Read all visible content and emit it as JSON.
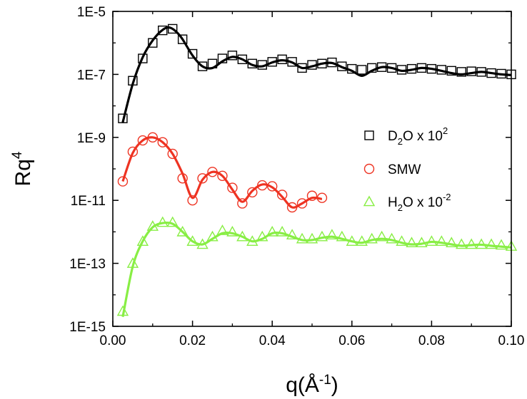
{
  "chart_data": {
    "type": "scatter",
    "xlabel": "q(Å",
    "xlabel_sup": "-1",
    "xlabel_tail": ")",
    "ylabel": "Rq",
    "ylabel_sup": "4",
    "xlim": [
      0,
      0.1
    ],
    "ylim": [
      1e-15,
      1e-05
    ],
    "yscale": "log",
    "grid": false,
    "legend_position": "right",
    "x_ticks": [
      {
        "value": 0.0,
        "label": "0.00"
      },
      {
        "value": 0.02,
        "label": "0.02"
      },
      {
        "value": 0.04,
        "label": "0.04"
      },
      {
        "value": 0.06,
        "label": "0.06"
      },
      {
        "value": 0.08,
        "label": "0.08"
      },
      {
        "value": 0.1,
        "label": "0.10"
      }
    ],
    "y_ticks": [
      {
        "value": 1e-15,
        "label": "1E-15"
      },
      {
        "value": 1e-13,
        "label": "1E-13"
      },
      {
        "value": 1e-11,
        "label": "1E-11"
      },
      {
        "value": 1e-09,
        "label": "1E-9"
      },
      {
        "value": 1e-07,
        "label": "1E-7"
      },
      {
        "value": 1e-05,
        "label": "1E-5"
      }
    ],
    "series": [
      {
        "name": "D2O x 10^2",
        "legend_parts": [
          "D",
          "2",
          "O x 10",
          "2"
        ],
        "marker": "square",
        "color": "#000000",
        "x": [
          0.0025,
          0.005,
          0.0075,
          0.01,
          0.0125,
          0.015,
          0.0175,
          0.02,
          0.0225,
          0.025,
          0.0275,
          0.03,
          0.0325,
          0.035,
          0.0375,
          0.04,
          0.0425,
          0.045,
          0.0475,
          0.05,
          0.0525,
          0.055,
          0.0575,
          0.06,
          0.0625,
          0.065,
          0.0675,
          0.07,
          0.0725,
          0.075,
          0.0775,
          0.08,
          0.0825,
          0.085,
          0.0875,
          0.09,
          0.0925,
          0.095,
          0.0975,
          0.1
        ],
        "y": [
          4e-09,
          6.3e-08,
          3.2e-07,
          1e-06,
          2.5e-06,
          2.8e-06,
          1.3e-06,
          4.5e-07,
          1.8e-07,
          2.2e-07,
          3.2e-07,
          4e-07,
          3e-07,
          2.2e-07,
          2e-07,
          2.5e-07,
          3e-07,
          2.5e-07,
          1.6e-07,
          2e-07,
          2.2e-07,
          2.4e-07,
          1.8e-07,
          1.5e-07,
          1.4e-07,
          1.6e-07,
          1.7e-07,
          1.6e-07,
          1.4e-07,
          1.5e-07,
          1.6e-07,
          1.5e-07,
          1.4e-07,
          1.3e-07,
          1.2e-07,
          1.25e-07,
          1.2e-07,
          1.1e-07,
          1.05e-07,
          1e-07
        ],
        "fit_x": [
          0.0025,
          0.005,
          0.0075,
          0.01,
          0.0125,
          0.0145,
          0.017,
          0.02,
          0.0225,
          0.025,
          0.0275,
          0.03,
          0.0325,
          0.035,
          0.0375,
          0.04,
          0.0425,
          0.045,
          0.0475,
          0.05,
          0.0525,
          0.055,
          0.0575,
          0.06,
          0.0625,
          0.065,
          0.0675,
          0.07,
          0.0725,
          0.075,
          0.0775,
          0.08,
          0.0825,
          0.085,
          0.0875,
          0.09,
          0.0925,
          0.095,
          0.0975,
          0.1
        ],
        "fit_y": [
          3e-09,
          5e-08,
          3.5e-07,
          1.2e-06,
          2.6e-06,
          3e-06,
          1.6e-06,
          4e-07,
          1.8e-07,
          1.6e-07,
          2.6e-07,
          3.6e-07,
          3e-07,
          2e-07,
          1.8e-07,
          2.4e-07,
          2.8e-07,
          2.4e-07,
          1.6e-07,
          1.8e-07,
          2.2e-07,
          2.3e-07,
          1.7e-07,
          1.3e-07,
          9e-08,
          1.3e-07,
          1.7e-07,
          1.6e-07,
          1.3e-07,
          1.4e-07,
          1.6e-07,
          1.5e-07,
          1.3e-07,
          1.1e-07,
          1e-07,
          1.1e-07,
          1.2e-07,
          1.1e-07,
          1e-07,
          9.5e-08
        ]
      },
      {
        "name": "SMW",
        "legend_parts": [
          "SMW"
        ],
        "marker": "circle",
        "color": "#ee3322",
        "x": [
          0.0025,
          0.005,
          0.0075,
          0.01,
          0.0125,
          0.015,
          0.0175,
          0.02,
          0.0225,
          0.025,
          0.0275,
          0.03,
          0.0325,
          0.035,
          0.0375,
          0.04,
          0.0425,
          0.045,
          0.0475,
          0.05,
          0.0525
        ],
        "y": [
          4e-11,
          3.5e-10,
          8e-10,
          1e-09,
          7e-10,
          3e-10,
          5e-11,
          1e-11,
          5e-11,
          8e-11,
          6e-11,
          2.5e-11,
          8e-12,
          1.8e-11,
          3e-11,
          2.8e-11,
          1.5e-11,
          6e-12,
          8e-12,
          1.4e-11,
          1.2e-11
        ],
        "fit_x": [
          0.0025,
          0.005,
          0.0075,
          0.01,
          0.0125,
          0.015,
          0.0175,
          0.02,
          0.0225,
          0.025,
          0.0275,
          0.03,
          0.0325,
          0.035,
          0.0375,
          0.04,
          0.0425,
          0.045,
          0.0475,
          0.05,
          0.0525
        ],
        "fit_y": [
          4e-11,
          3.2e-10,
          8e-10,
          1e-09,
          7e-10,
          3e-10,
          7e-11,
          1.2e-11,
          4.5e-11,
          8e-11,
          6e-11,
          2.2e-11,
          9e-12,
          2e-11,
          3.2e-11,
          2.6e-11,
          1.3e-11,
          6e-12,
          8e-12,
          1.2e-11,
          1.1e-11
        ]
      },
      {
        "name": "H2O x 10^-2",
        "legend_parts": [
          "H",
          "2",
          "O x 10",
          "-2"
        ],
        "marker": "triangle",
        "color": "#88ee44",
        "x": [
          0.0025,
          0.005,
          0.0075,
          0.01,
          0.0125,
          0.015,
          0.0175,
          0.02,
          0.0225,
          0.025,
          0.0275,
          0.03,
          0.0325,
          0.035,
          0.0375,
          0.04,
          0.0425,
          0.045,
          0.0475,
          0.05,
          0.0525,
          0.055,
          0.0575,
          0.06,
          0.0625,
          0.065,
          0.0675,
          0.07,
          0.0725,
          0.075,
          0.0775,
          0.08,
          0.0825,
          0.085,
          0.0875,
          0.09,
          0.0925,
          0.095,
          0.0975,
          0.1
        ],
        "y": [
          3e-15,
          1e-13,
          5e-13,
          1.5e-12,
          2e-12,
          2e-12,
          1e-12,
          5e-13,
          4e-13,
          7e-13,
          1.1e-12,
          1e-12,
          7e-13,
          5e-13,
          7e-13,
          1e-12,
          1e-12,
          8e-13,
          6e-13,
          6e-13,
          7e-13,
          8e-13,
          7e-13,
          5e-13,
          5e-13,
          6e-13,
          7e-13,
          6e-13,
          5e-13,
          4.5e-13,
          4.5e-13,
          5e-13,
          5e-13,
          4.5e-13,
          4e-13,
          4e-13,
          4e-13,
          4e-13,
          3.8e-13,
          3.5e-13
        ],
        "fit_x": [
          0.0025,
          0.005,
          0.0075,
          0.01,
          0.0125,
          0.015,
          0.0175,
          0.02,
          0.0225,
          0.025,
          0.0275,
          0.03,
          0.0325,
          0.035,
          0.0375,
          0.04,
          0.0425,
          0.045,
          0.0475,
          0.05,
          0.0525,
          0.055,
          0.0575,
          0.06,
          0.0625,
          0.065,
          0.0675,
          0.07,
          0.0725,
          0.075,
          0.0775,
          0.08,
          0.0825,
          0.085,
          0.0875,
          0.09,
          0.0925,
          0.095,
          0.0975,
          0.1
        ],
        "fit_y": [
          2e-15,
          8e-14,
          5e-13,
          1.4e-12,
          1.9e-12,
          1.8e-12,
          1e-12,
          5e-13,
          4e-13,
          6e-13,
          9e-13,
          9e-13,
          7e-13,
          5e-13,
          6e-13,
          9e-13,
          9e-13,
          7e-13,
          5.5e-13,
          5.5e-13,
          6.5e-13,
          7e-13,
          6e-13,
          5e-13,
          4.5e-13,
          5.5e-13,
          6e-13,
          5.5e-13,
          4.5e-13,
          4e-13,
          4.2e-13,
          4.8e-13,
          4.5e-13,
          4e-13,
          3.6e-13,
          3.8e-13,
          3.9e-13,
          3.6e-13,
          3.4e-13,
          3.2e-13
        ]
      }
    ]
  }
}
